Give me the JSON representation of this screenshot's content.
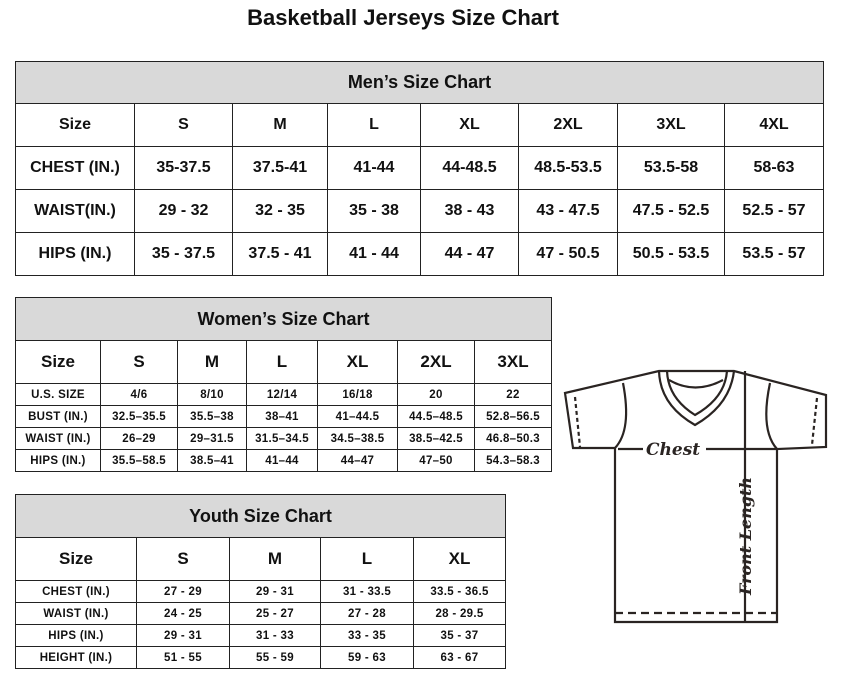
{
  "title": "Basketball Jerseys Size Chart",
  "mens": {
    "heading": "Men’s Size Chart",
    "header": [
      "Size",
      "S",
      "M",
      "L",
      "XL",
      "2XL",
      "3XL",
      "4XL"
    ],
    "rows": [
      [
        "CHEST (IN.)",
        "35-37.5",
        "37.5-41",
        "41-44",
        "44-48.5",
        "48.5-53.5",
        "53.5-58",
        "58-63"
      ],
      [
        "WAIST(IN.)",
        "29 - 32",
        "32 - 35",
        "35 - 38",
        "38 - 43",
        "43 - 47.5",
        "47.5 - 52.5",
        "52.5 - 57"
      ],
      [
        "HIPS (IN.)",
        "35 - 37.5",
        "37.5 - 41",
        "41 - 44",
        "44 - 47",
        "47 - 50.5",
        "50.5 - 53.5",
        "53.5 - 57"
      ]
    ]
  },
  "womens": {
    "heading": "Women’s Size Chart",
    "header": [
      "Size",
      "S",
      "M",
      "L",
      "XL",
      "2XL",
      "3XL"
    ],
    "rows": [
      [
        "U.S. SIZE",
        "4/6",
        "8/10",
        "12/14",
        "16/18",
        "20",
        "22"
      ],
      [
        "BUST (IN.)",
        "32.5–35.5",
        "35.5–38",
        "38–41",
        "41–44.5",
        "44.5–48.5",
        "52.8–56.5"
      ],
      [
        "WAIST (IN.)",
        "26–29",
        "29–31.5",
        "31.5–34.5",
        "34.5–38.5",
        "38.5–42.5",
        "46.8–50.3"
      ],
      [
        "HIPS (IN.)",
        "35.5–58.5",
        "38.5–41",
        "41–44",
        "44–47",
        "47–50",
        "54.3–58.3"
      ]
    ]
  },
  "youth": {
    "heading": "Youth Size Chart",
    "header": [
      "Size",
      "S",
      "M",
      "L",
      "XL"
    ],
    "rows": [
      [
        "CHEST (IN.)",
        "27 - 29",
        "29 - 31",
        "31 - 33.5",
        "33.5 - 36.5"
      ],
      [
        "WAIST (IN.)",
        "24 - 25",
        "25 - 27",
        "27 - 28",
        "28 - 29.5"
      ],
      [
        "HIPS (IN.)",
        "29 - 31",
        "31 - 33",
        "33 - 35",
        "35 - 37"
      ],
      [
        "HEIGHT (IN.)",
        "51 - 55",
        "55 - 59",
        "59 - 63",
        "63 - 67"
      ]
    ]
  },
  "diagram": {
    "chest_label": "Chest",
    "length_label": "Front Length"
  }
}
